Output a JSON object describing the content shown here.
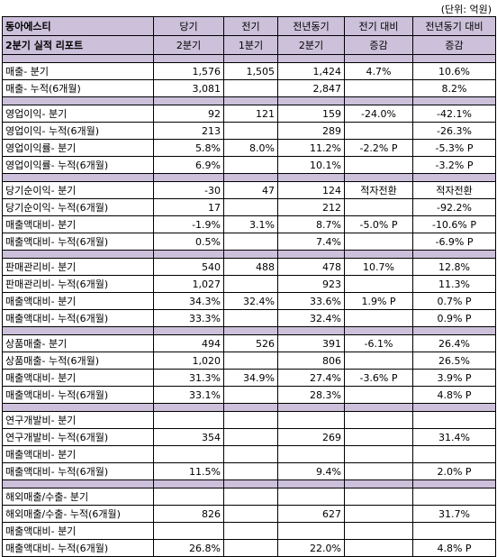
{
  "unit": "(단위: 억원)",
  "header": {
    "title_line1": "동아에스티",
    "title_line2": "2분기 실적 리포트",
    "columns": [
      {
        "line1": "당기",
        "line2": "2분기"
      },
      {
        "line1": "전기",
        "line2": "1분기"
      },
      {
        "line1": "전년동기",
        "line2": "2분기"
      },
      {
        "line1": "전기 대비",
        "line2": "증감"
      },
      {
        "line1": "전년동기 대비",
        "line2": "증감"
      }
    ]
  },
  "sections": [
    {
      "rows": [
        {
          "label": "매출- 분기",
          "cur": "1,576",
          "prev": "1,505",
          "yoy": "1,424",
          "qoq_chg": "4.7%",
          "yoy_chg": "10.6%"
        },
        {
          "label": "매출- 누적(6개월)",
          "cur": "3,081",
          "prev": "",
          "yoy": "2,847",
          "qoq_chg": "",
          "yoy_chg": "8.2%"
        }
      ]
    },
    {
      "rows": [
        {
          "label": "영업이익- 분기",
          "cur": "92",
          "prev": "121",
          "yoy": "159",
          "qoq_chg": "-24.0%",
          "yoy_chg": "-42.1%"
        },
        {
          "label": "영업이익- 누적(6개월)",
          "cur": "213",
          "prev": "",
          "yoy": "289",
          "qoq_chg": "",
          "yoy_chg": "-26.3%"
        },
        {
          "label": "영업이익률- 분기",
          "cur": "5.8%",
          "prev": "8.0%",
          "yoy": "11.2%",
          "qoq_chg": "-2.2% P",
          "yoy_chg": "-5.3% P"
        },
        {
          "label": "영업이익률- 누적(6개월)",
          "cur": "6.9%",
          "prev": "",
          "yoy": "10.1%",
          "qoq_chg": "",
          "yoy_chg": "-3.2% P"
        }
      ]
    },
    {
      "rows": [
        {
          "label": "당기순이익- 분기",
          "cur": "-30",
          "prev": "47",
          "yoy": "124",
          "qoq_chg": "적자전환",
          "yoy_chg": "적자전환"
        },
        {
          "label": "당기순이익- 누적(6개월)",
          "cur": "17",
          "prev": "",
          "yoy": "212",
          "qoq_chg": "",
          "yoy_chg": "-92.2%"
        },
        {
          "label": "매출액대비- 분기",
          "cur": "-1.9%",
          "prev": "3.1%",
          "yoy": "8.7%",
          "qoq_chg": "-5.0% P",
          "yoy_chg": "-10.6% P"
        },
        {
          "label": "매출액대비- 누적(6개월)",
          "cur": "0.5%",
          "prev": "",
          "yoy": "7.4%",
          "qoq_chg": "",
          "yoy_chg": "-6.9% P"
        }
      ]
    },
    {
      "rows": [
        {
          "label": "판매관리비- 분기",
          "cur": "540",
          "prev": "488",
          "yoy": "478",
          "qoq_chg": "10.7%",
          "yoy_chg": "12.8%"
        },
        {
          "label": "판매관리비- 누적(6개월)",
          "cur": "1,027",
          "prev": "",
          "yoy": "923",
          "qoq_chg": "",
          "yoy_chg": "11.3%"
        },
        {
          "label": "매출액대비- 분기",
          "cur": "34.3%",
          "prev": "32.4%",
          "yoy": "33.6%",
          "qoq_chg": "1.9% P",
          "yoy_chg": "0.7% P"
        },
        {
          "label": "매출액대비- 누적(6개월)",
          "cur": "33.3%",
          "prev": "",
          "yoy": "32.4%",
          "qoq_chg": "",
          "yoy_chg": "0.9% P"
        }
      ]
    },
    {
      "rows": [
        {
          "label": "상품매출- 분기",
          "cur": "494",
          "prev": "526",
          "yoy": "391",
          "qoq_chg": "-6.1%",
          "yoy_chg": "26.4%"
        },
        {
          "label": "상품매출- 누적(6개월)",
          "cur": "1,020",
          "prev": "",
          "yoy": "806",
          "qoq_chg": "",
          "yoy_chg": "26.5%"
        },
        {
          "label": "매출액대비- 분기",
          "cur": "31.3%",
          "prev": "34.9%",
          "yoy": "27.4%",
          "qoq_chg": "-3.6% P",
          "yoy_chg": "3.9% P"
        },
        {
          "label": "매출액대비- 누적(6개월)",
          "cur": "33.1%",
          "prev": "",
          "yoy": "28.3%",
          "qoq_chg": "",
          "yoy_chg": "4.8% P"
        }
      ]
    },
    {
      "rows": [
        {
          "label": "연구개발비- 분기",
          "cur": "",
          "prev": "",
          "yoy": "",
          "qoq_chg": "",
          "yoy_chg": ""
        },
        {
          "label": "연구개발비- 누적(6개월)",
          "cur": "354",
          "prev": "",
          "yoy": "269",
          "qoq_chg": "",
          "yoy_chg": "31.4%"
        },
        {
          "label": "매출액대비- 분기",
          "cur": "",
          "prev": "",
          "yoy": "",
          "qoq_chg": "",
          "yoy_chg": ""
        },
        {
          "label": "매출액대비- 누적(6개월)",
          "cur": "11.5%",
          "prev": "",
          "yoy": "9.4%",
          "qoq_chg": "",
          "yoy_chg": "2.0% P"
        }
      ]
    },
    {
      "rows": [
        {
          "label": "해외매출/수출- 분기",
          "cur": "",
          "prev": "",
          "yoy": "",
          "qoq_chg": "",
          "yoy_chg": ""
        },
        {
          "label": "해외매출/수출- 누적(6개월)",
          "cur": "826",
          "prev": "",
          "yoy": "627",
          "qoq_chg": "",
          "yoy_chg": "31.7%"
        },
        {
          "label": "매출액대비- 분기",
          "cur": "",
          "prev": "",
          "yoy": "",
          "qoq_chg": "",
          "yoy_chg": ""
        },
        {
          "label": "매출액대비- 누적(6개월)",
          "cur": "26.8%",
          "prev": "",
          "yoy": "22.0%",
          "qoq_chg": "",
          "yoy_chg": "4.8% P"
        }
      ]
    }
  ]
}
